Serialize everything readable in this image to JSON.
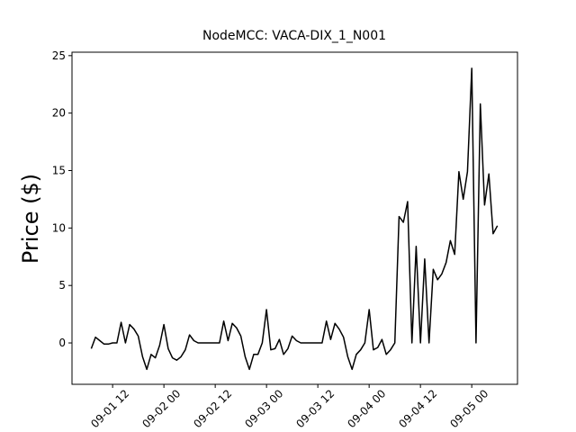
{
  "chart_data": {
    "type": "line",
    "title": "NodeMCC: VACA-DIX_1_N001",
    "ylabel": "Price ($)",
    "x": [
      7,
      8,
      9,
      10,
      11,
      12,
      13,
      14,
      15,
      16,
      17,
      18,
      19,
      20,
      21,
      22,
      23,
      24,
      25,
      26,
      27,
      28,
      29,
      30,
      31,
      32,
      33,
      34,
      35,
      36,
      37,
      38,
      39,
      40,
      41,
      42,
      43,
      44,
      45,
      46,
      47,
      48,
      49,
      50,
      51,
      52,
      53,
      54,
      55,
      56,
      57,
      58,
      59,
      60,
      61,
      62,
      63,
      64,
      65,
      66,
      67,
      68,
      69,
      70,
      71,
      72,
      73,
      74,
      75,
      76,
      77,
      78,
      79,
      80,
      81,
      82,
      83,
      84,
      85,
      86,
      87,
      88,
      89,
      90,
      91,
      92,
      93,
      94,
      95,
      96,
      97,
      98,
      99,
      100,
      101,
      102
    ],
    "series": [
      {
        "name": "Price",
        "color": "#000000",
        "values": [
          -0.5,
          0.5,
          0.2,
          -0.1,
          -0.1,
          0,
          0,
          1.8,
          0,
          1.6,
          1.2,
          0.6,
          -1.2,
          -2.3,
          -1.0,
          -1.3,
          -0.2,
          1.6,
          -0.5,
          -1.3,
          -1.5,
          -1.2,
          -0.6,
          0.7,
          0.2,
          0,
          0,
          0,
          0,
          0,
          0,
          1.9,
          0.2,
          1.7,
          1.3,
          0.6,
          -1.2,
          -2.3,
          -1.0,
          -1.0,
          0,
          2.9,
          -0.6,
          -0.5,
          0.3,
          -1.0,
          -0.5,
          0.6,
          0.2,
          0,
          0,
          0,
          0,
          0,
          0,
          1.9,
          0.3,
          1.7,
          1.2,
          0.5,
          -1.2,
          -2.3,
          -1.0,
          -0.6,
          0,
          2.9,
          -0.6,
          -0.4,
          0.3,
          -1.0,
          -0.6,
          0,
          11.0,
          10.5,
          12.3,
          0,
          8.4,
          0,
          7.3,
          0,
          6.4,
          5.5,
          6.0,
          7.0,
          8.9,
          7.7,
          14.9,
          12.5,
          14.9,
          23.9,
          0,
          20.8,
          12.0,
          14.7,
          9.5,
          10.2
        ]
      }
    ],
    "xlim": [
      2.5,
      106.7
    ],
    "xticks": [
      {
        "value": 12,
        "label": "09-01 12"
      },
      {
        "value": 24,
        "label": "09-02 00"
      },
      {
        "value": 36,
        "label": "09-02 12"
      },
      {
        "value": 48,
        "label": "09-03 00"
      },
      {
        "value": 60,
        "label": "09-03 12"
      },
      {
        "value": 72,
        "label": "09-04 00"
      },
      {
        "value": 84,
        "label": "09-04 12"
      },
      {
        "value": 96,
        "label": "09-05 00"
      }
    ],
    "ylim": [
      -3.6,
      25.3
    ],
    "yticks": [
      0,
      5,
      10,
      15,
      20,
      25
    ],
    "grid": false
  }
}
